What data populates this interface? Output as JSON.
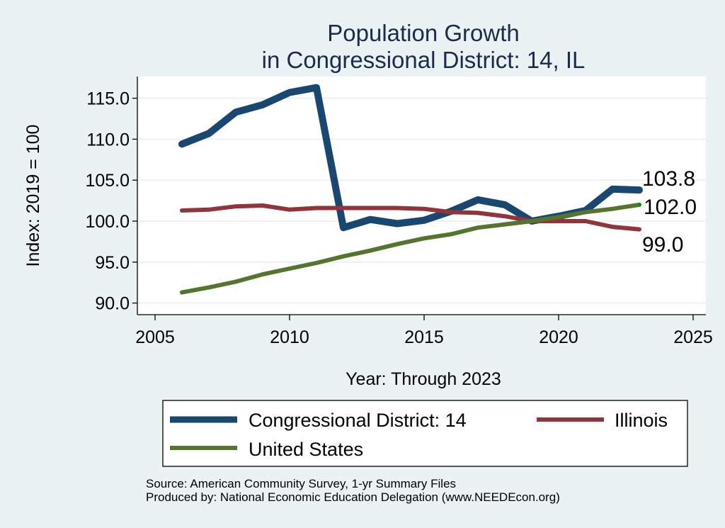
{
  "chart_data": {
    "type": "line",
    "title": [
      "Population Growth",
      "in Congressional District: 14, IL"
    ],
    "xlabel": "Year: Through 2023",
    "ylabel": "Index: 2019 = 100",
    "xlim": [
      2005,
      2025
    ],
    "ylim": [
      88.5,
      117.5
    ],
    "xticks": [
      2005,
      2010,
      2015,
      2020,
      2025
    ],
    "xtick_labels": [
      "2005",
      "2010",
      "2015",
      "2020",
      "2025"
    ],
    "yticks": [
      90,
      95,
      100,
      105,
      110,
      115
    ],
    "ytick_labels": [
      "90.0",
      "95.0",
      "100.0",
      "105.0",
      "110.0",
      "115.0"
    ],
    "grid": true,
    "x": [
      2006,
      2007,
      2008,
      2009,
      2010,
      2011,
      2012,
      2013,
      2014,
      2015,
      2016,
      2017,
      2018,
      2019,
      2020,
      2021,
      2022,
      2023
    ],
    "series": [
      {
        "name": "Congressional District: 14",
        "color": "#1a476f",
        "values": [
          109.4,
          110.7,
          113.3,
          114.2,
          115.7,
          116.3,
          99.2,
          100.2,
          99.7,
          100.1,
          101.2,
          102.6,
          102.0,
          100.0,
          100.6,
          101.3,
          103.9,
          103.8
        ],
        "end_label": "103.8"
      },
      {
        "name": "Illinois",
        "color": "#90353b",
        "values": [
          101.3,
          101.4,
          101.8,
          101.9,
          101.4,
          101.6,
          101.6,
          101.6,
          101.6,
          101.5,
          101.1,
          101.0,
          100.6,
          100.0,
          100.0,
          100.0,
          99.3,
          99.0
        ],
        "end_label": "99.0"
      },
      {
        "name": "United States",
        "color": "#55752f",
        "values": [
          91.3,
          91.9,
          92.6,
          93.5,
          94.2,
          94.9,
          95.7,
          96.4,
          97.2,
          97.9,
          98.4,
          99.2,
          99.6,
          100.0,
          100.5,
          101.1,
          101.5,
          102.0
        ],
        "end_label": "102.0"
      }
    ],
    "legend": {
      "placement": "bottom",
      "entries": [
        "Congressional District: 14",
        "Illinois",
        "United States"
      ]
    },
    "notes": [
      "Source: American Community Survey, 1-yr Summary Files",
      "Produced by: National Economic Education Delegation (www.NEEDEcon.org)"
    ]
  }
}
